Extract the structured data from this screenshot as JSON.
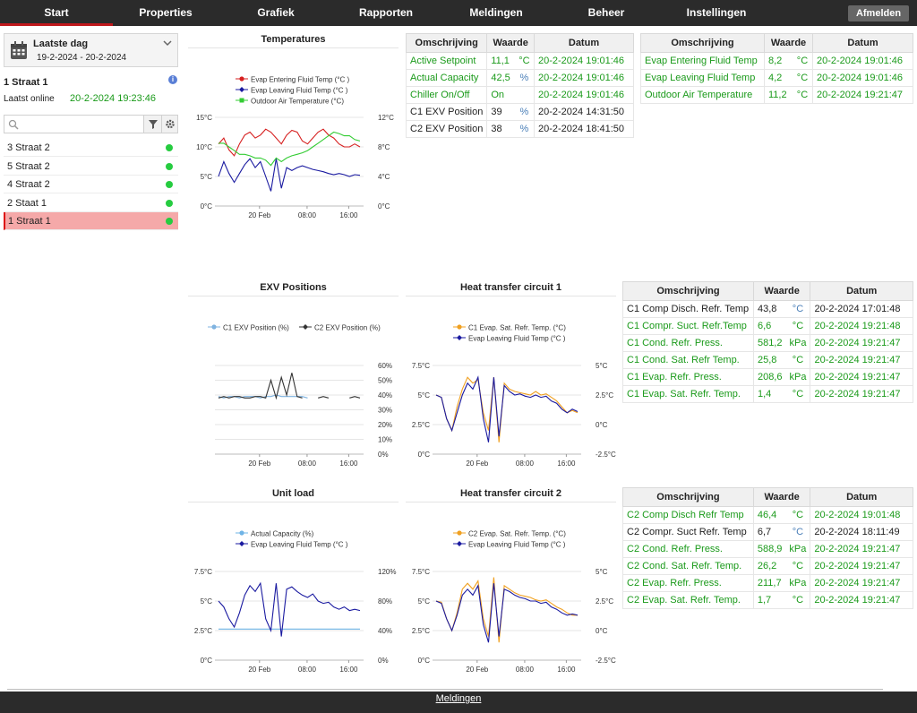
{
  "nav": {
    "tabs": [
      {
        "label": "Start"
      },
      {
        "label": "Properties"
      },
      {
        "label": "Grafiek"
      },
      {
        "label": "Rapporten"
      },
      {
        "label": "Meldingen"
      },
      {
        "label": "Beheer"
      },
      {
        "label": "Instellingen"
      }
    ],
    "active": "Start",
    "logout": "Afmelden"
  },
  "sidebar": {
    "period_title": "Laatste dag",
    "period_range": "19-2-2024 - 20-2-2024",
    "site_name": "1 Straat 1",
    "info_icon": "i",
    "online_label": "Laatst online",
    "online_value": "20-2-2024 19:23:46",
    "search_placeholder": "",
    "sites": [
      {
        "name": "3 Straat 2",
        "status": "online"
      },
      {
        "name": "5 Straat 2",
        "status": "online"
      },
      {
        "name": "4 Straat 2",
        "status": "online"
      },
      {
        "name": "2 Staat 1",
        "status": "online"
      },
      {
        "name": "1 Straat 1",
        "status": "online",
        "selected": true
      }
    ]
  },
  "tables": {
    "general": {
      "headers": [
        "Omschrijving",
        "Waarde",
        "Datum"
      ],
      "rows": [
        {
          "desc": "Active Setpoint",
          "value": "11,1",
          "unit": "°C",
          "date": "20-2-2024 19:01:46",
          "color": "green"
        },
        {
          "desc": "Actual Capacity",
          "value": "42,5",
          "unit": "%",
          "date": "20-2-2024 19:01:46",
          "color": "green"
        },
        {
          "desc": "Chiller On/Off",
          "value": "On",
          "unit": "",
          "date": "20-2-2024 19:01:46",
          "color": "green"
        },
        {
          "desc": "C1 EXV Position",
          "value": "39",
          "unit": "%",
          "date": "20-2-2024 14:31:50",
          "color": "black"
        },
        {
          "desc": "C2 EXV Position",
          "value": "38",
          "unit": "%",
          "date": "20-2-2024 18:41:50",
          "color": "black"
        }
      ]
    },
    "temps": {
      "headers": [
        "Omschrijving",
        "Waarde",
        "Datum"
      ],
      "rows": [
        {
          "desc": "Evap Entering Fluid Temp",
          "value": "8,2",
          "unit": "°C",
          "date": "20-2-2024 19:01:46",
          "color": "green"
        },
        {
          "desc": "Evap Leaving Fluid Temp",
          "value": "4,2",
          "unit": "°C",
          "date": "20-2-2024 19:01:46",
          "color": "green"
        },
        {
          "desc": "Outdoor Air Temperature",
          "value": "11,2",
          "unit": "°C",
          "date": "20-2-2024 19:21:47",
          "color": "green"
        }
      ]
    },
    "c1": {
      "headers": [
        "Omschrijving",
        "Waarde",
        "Datum"
      ],
      "rows": [
        {
          "desc": "C1 Comp Disch. Refr. Temp",
          "value": "43,8",
          "unit": "°C",
          "date": "20-2-2024 17:01:48",
          "color": "black"
        },
        {
          "desc": "C1 Compr. Suct. Refr.Temp",
          "value": "6,6",
          "unit": "°C",
          "date": "20-2-2024 19:21:48",
          "color": "green"
        },
        {
          "desc": "C1 Cond. Refr. Press.",
          "value": "581,2",
          "unit": "kPa",
          "date": "20-2-2024 19:21:47",
          "color": "green"
        },
        {
          "desc": "C1 Cond. Sat. Refr Temp.",
          "value": "25,8",
          "unit": "°C",
          "date": "20-2-2024 19:21:47",
          "color": "green"
        },
        {
          "desc": "C1 Evap. Refr. Press.",
          "value": "208,6",
          "unit": "kPa",
          "date": "20-2-2024 19:21:47",
          "color": "green"
        },
        {
          "desc": "C1 Evap. Sat. Refr. Temp.",
          "value": "1,4",
          "unit": "°C",
          "date": "20-2-2024 19:21:47",
          "color": "green"
        }
      ]
    },
    "c2": {
      "headers": [
        "Omschrijving",
        "Waarde",
        "Datum"
      ],
      "rows": [
        {
          "desc": "C2 Comp Disch Refr Temp",
          "value": "46,4",
          "unit": "°C",
          "date": "20-2-2024 19:01:48",
          "color": "green"
        },
        {
          "desc": "C2 Compr. Suct Refr. Temp",
          "value": "6,7",
          "unit": "°C",
          "date": "20-2-2024 18:11:49",
          "color": "black"
        },
        {
          "desc": "C2 Cond. Refr. Press.",
          "value": "588,9",
          "unit": "kPa",
          "date": "20-2-2024 19:21:47",
          "color": "green"
        },
        {
          "desc": "C2 Cond. Sat. Refr. Temp.",
          "value": "26,2",
          "unit": "°C",
          "date": "20-2-2024 19:21:47",
          "color": "green"
        },
        {
          "desc": "C2 Evap. Refr. Press.",
          "value": "211,7",
          "unit": "kPa",
          "date": "20-2-2024 19:21:47",
          "color": "green"
        },
        {
          "desc": "C2 Evap. Sat. Refr. Temp.",
          "value": "1,7",
          "unit": "°C",
          "date": "20-2-2024 19:21:47",
          "color": "green"
        }
      ]
    }
  },
  "footer": {
    "link": "Meldingen"
  },
  "colors": {
    "green_text": "#1a9a1a",
    "nav_bg": "#2b2b2b",
    "active_tab": "#c0181c",
    "selected_row": "#f5a9a9"
  },
  "chart_data": [
    {
      "id": "temperatures",
      "type": "line",
      "title": "Temperatures",
      "x_ticks": [
        "20 Feb",
        "08:00",
        "16:00"
      ],
      "left_axis": {
        "ticks": [
          "0°C",
          "5°C",
          "10°C",
          "15°C"
        ],
        "ylim": [
          0,
          15
        ]
      },
      "right_axis": {
        "ticks": [
          "0°C",
          "4°C",
          "8°C",
          "12°C"
        ],
        "ylim": [
          0,
          12
        ]
      },
      "series": [
        {
          "name": "Evap Entering Fluid Temp (°C )",
          "color": "#d62020",
          "marker": "circle",
          "axis": "left",
          "values": [
            10.5,
            11.5,
            9.5,
            8.5,
            10.5,
            12.0,
            12.5,
            11.5,
            12.0,
            13.0,
            12.5,
            11.5,
            10.5,
            12.0,
            12.8,
            12.5,
            11.0,
            10.5,
            11.5,
            12.5,
            13.0,
            12.0,
            11.5,
            10.5,
            10.0,
            10.0,
            10.5,
            10.0
          ]
        },
        {
          "name": "Evap Leaving Fluid Temp (°C )",
          "color": "#1a1aa0",
          "marker": "diamond",
          "axis": "left",
          "values": [
            5.0,
            7.5,
            5.5,
            4.0,
            5.5,
            7.0,
            8.0,
            6.5,
            7.5,
            5.0,
            2.5,
            8.0,
            3.0,
            6.5,
            6.0,
            6.5,
            6.8,
            6.5,
            6.2,
            6.0,
            5.8,
            5.5,
            5.3,
            5.5,
            5.3,
            5.0,
            5.3,
            5.2
          ]
        },
        {
          "name": "Outdoor Air Temperature (°C)",
          "color": "#33cc33",
          "marker": "square",
          "axis": "right",
          "values": [
            8.5,
            8.5,
            8.0,
            7.5,
            7.0,
            7.0,
            6.8,
            6.5,
            6.5,
            6.2,
            5.5,
            6.5,
            6.0,
            6.5,
            6.8,
            7.0,
            7.2,
            7.5,
            8.0,
            8.5,
            9.0,
            9.5,
            10.0,
            9.8,
            9.5,
            9.5,
            9.0,
            8.8
          ]
        }
      ]
    },
    {
      "id": "exv",
      "type": "line",
      "title": "EXV Positions",
      "x_ticks": [
        "20 Feb",
        "08:00",
        "16:00"
      ],
      "left_axis": {
        "ticks": [],
        "ylim": [
          0,
          60
        ]
      },
      "right_axis": {
        "ticks": [
          "0%",
          "10%",
          "20%",
          "30%",
          "40%",
          "50%",
          "60%"
        ],
        "ylim": [
          0,
          60
        ]
      },
      "series": [
        {
          "name": "C1 EXV Position (%)",
          "color": "#7fb3e0",
          "marker": "circle",
          "axis": "right",
          "values": [
            39,
            38,
            39,
            39,
            38,
            39,
            39,
            39,
            38,
            39,
            39,
            40,
            39,
            39,
            39,
            39,
            39,
            38,
            null,
            null,
            null,
            null,
            null,
            null,
            null,
            null,
            null,
            null
          ]
        },
        {
          "name": "C2 EXV Position (%)",
          "color": "#333333",
          "marker": "diamond",
          "axis": "right",
          "values": [
            38,
            39,
            38,
            39,
            39,
            38,
            38,
            39,
            39,
            38,
            50,
            38,
            52,
            40,
            55,
            39,
            38,
            null,
            null,
            38,
            39,
            38,
            null,
            null,
            null,
            38,
            39,
            38
          ]
        }
      ]
    },
    {
      "id": "htc1",
      "type": "line",
      "title": "Heat transfer circuit 1",
      "x_ticks": [
        "20 Feb",
        "08:00",
        "16:00"
      ],
      "left_axis": {
        "ticks": [
          "0°C",
          "2.5°C",
          "5°C",
          "7.5°C"
        ],
        "ylim": [
          0,
          7.5
        ]
      },
      "right_axis": {
        "ticks": [
          "-2.5°C",
          "0°C",
          "2.5°C",
          "5°C"
        ],
        "ylim": [
          -2.5,
          5
        ]
      },
      "series": [
        {
          "name": "C1 Evap. Sat. Refr. Temp. (°C)",
          "color": "#f0a020",
          "marker": "circle",
          "axis": "right",
          "values": [
            2.5,
            2.3,
            0.5,
            -0.5,
            1.5,
            3.0,
            4.0,
            3.5,
            3.8,
            1.0,
            -0.5,
            4.0,
            -1.5,
            3.5,
            3.0,
            2.8,
            2.7,
            2.6,
            2.5,
            2.8,
            2.5,
            2.6,
            2.3,
            2.0,
            1.5,
            1.0,
            1.2,
            1.0
          ]
        },
        {
          "name": "Evap Leaving Fluid Temp (°C )",
          "color": "#1a1aa0",
          "marker": "diamond",
          "axis": "left",
          "values": [
            5.0,
            4.8,
            3.0,
            2.0,
            3.5,
            5.0,
            6.0,
            5.5,
            6.5,
            3.0,
            1.0,
            6.5,
            1.5,
            5.8,
            5.3,
            5.0,
            5.1,
            4.9,
            4.8,
            5.0,
            4.8,
            4.9,
            4.5,
            4.3,
            3.8,
            3.5,
            3.8,
            3.6
          ]
        }
      ]
    },
    {
      "id": "unitload",
      "type": "line",
      "title": "Unit load",
      "x_ticks": [
        "20 Feb",
        "08:00",
        "16:00"
      ],
      "left_axis": {
        "ticks": [
          "0°C",
          "2.5°C",
          "5°C",
          "7.5°C"
        ],
        "ylim": [
          0,
          7.5
        ]
      },
      "right_axis": {
        "ticks": [
          "0%",
          "40%",
          "80%",
          "120%"
        ],
        "ylim": [
          0,
          120
        ]
      },
      "series": [
        {
          "name": "Actual Capacity (%)",
          "color": "#6fb4e6",
          "marker": "circle",
          "axis": "right",
          "values": [
            42,
            42,
            42,
            42,
            42,
            42,
            42,
            42,
            42,
            42,
            42,
            42,
            42,
            42,
            42,
            42,
            42,
            42,
            42,
            42,
            42,
            42,
            42,
            42,
            42,
            42,
            42,
            42
          ]
        },
        {
          "name": "Evap Leaving Fluid Temp (°C )",
          "color": "#1a1aa0",
          "marker": "diamond",
          "axis": "left",
          "values": [
            5.0,
            4.5,
            3.5,
            2.8,
            4.0,
            5.5,
            6.3,
            5.8,
            6.5,
            3.5,
            2.5,
            6.5,
            2.0,
            6.0,
            6.2,
            5.8,
            5.5,
            5.3,
            5.6,
            5.0,
            4.8,
            4.9,
            4.5,
            4.3,
            4.5,
            4.2,
            4.3,
            4.2
          ]
        }
      ]
    },
    {
      "id": "htc2",
      "type": "line",
      "title": "Heat transfer circuit 2",
      "x_ticks": [
        "20 Feb",
        "08:00",
        "16:00"
      ],
      "left_axis": {
        "ticks": [
          "0°C",
          "2.5°C",
          "5°C",
          "7.5°C"
        ],
        "ylim": [
          0,
          7.5
        ]
      },
      "right_axis": {
        "ticks": [
          "-2.5°C",
          "0°C",
          "2.5°C",
          "5°C"
        ],
        "ylim": [
          -2.5,
          5
        ]
      },
      "series": [
        {
          "name": "C2 Evap. Sat. Refr. Temp. (°C)",
          "color": "#f0a020",
          "marker": "circle",
          "axis": "right",
          "values": [
            2.5,
            2.4,
            1.0,
            0.0,
            1.5,
            3.5,
            4.0,
            3.5,
            4.2,
            1.0,
            -0.5,
            4.5,
            -1.0,
            3.8,
            3.5,
            3.2,
            3.0,
            2.9,
            2.8,
            2.6,
            2.5,
            2.6,
            2.3,
            2.0,
            1.8,
            1.5,
            1.3,
            1.3
          ]
        },
        {
          "name": "Evap Leaving Fluid Temp (°C )",
          "color": "#1a1aa0",
          "marker": "diamond",
          "axis": "left",
          "values": [
            5.0,
            4.8,
            3.5,
            2.5,
            3.8,
            5.5,
            6.0,
            5.5,
            6.3,
            3.0,
            1.5,
            6.5,
            2.0,
            6.0,
            5.8,
            5.5,
            5.3,
            5.2,
            5.0,
            5.0,
            4.8,
            4.9,
            4.5,
            4.3,
            4.0,
            3.8,
            3.9,
            3.8
          ]
        }
      ]
    }
  ]
}
